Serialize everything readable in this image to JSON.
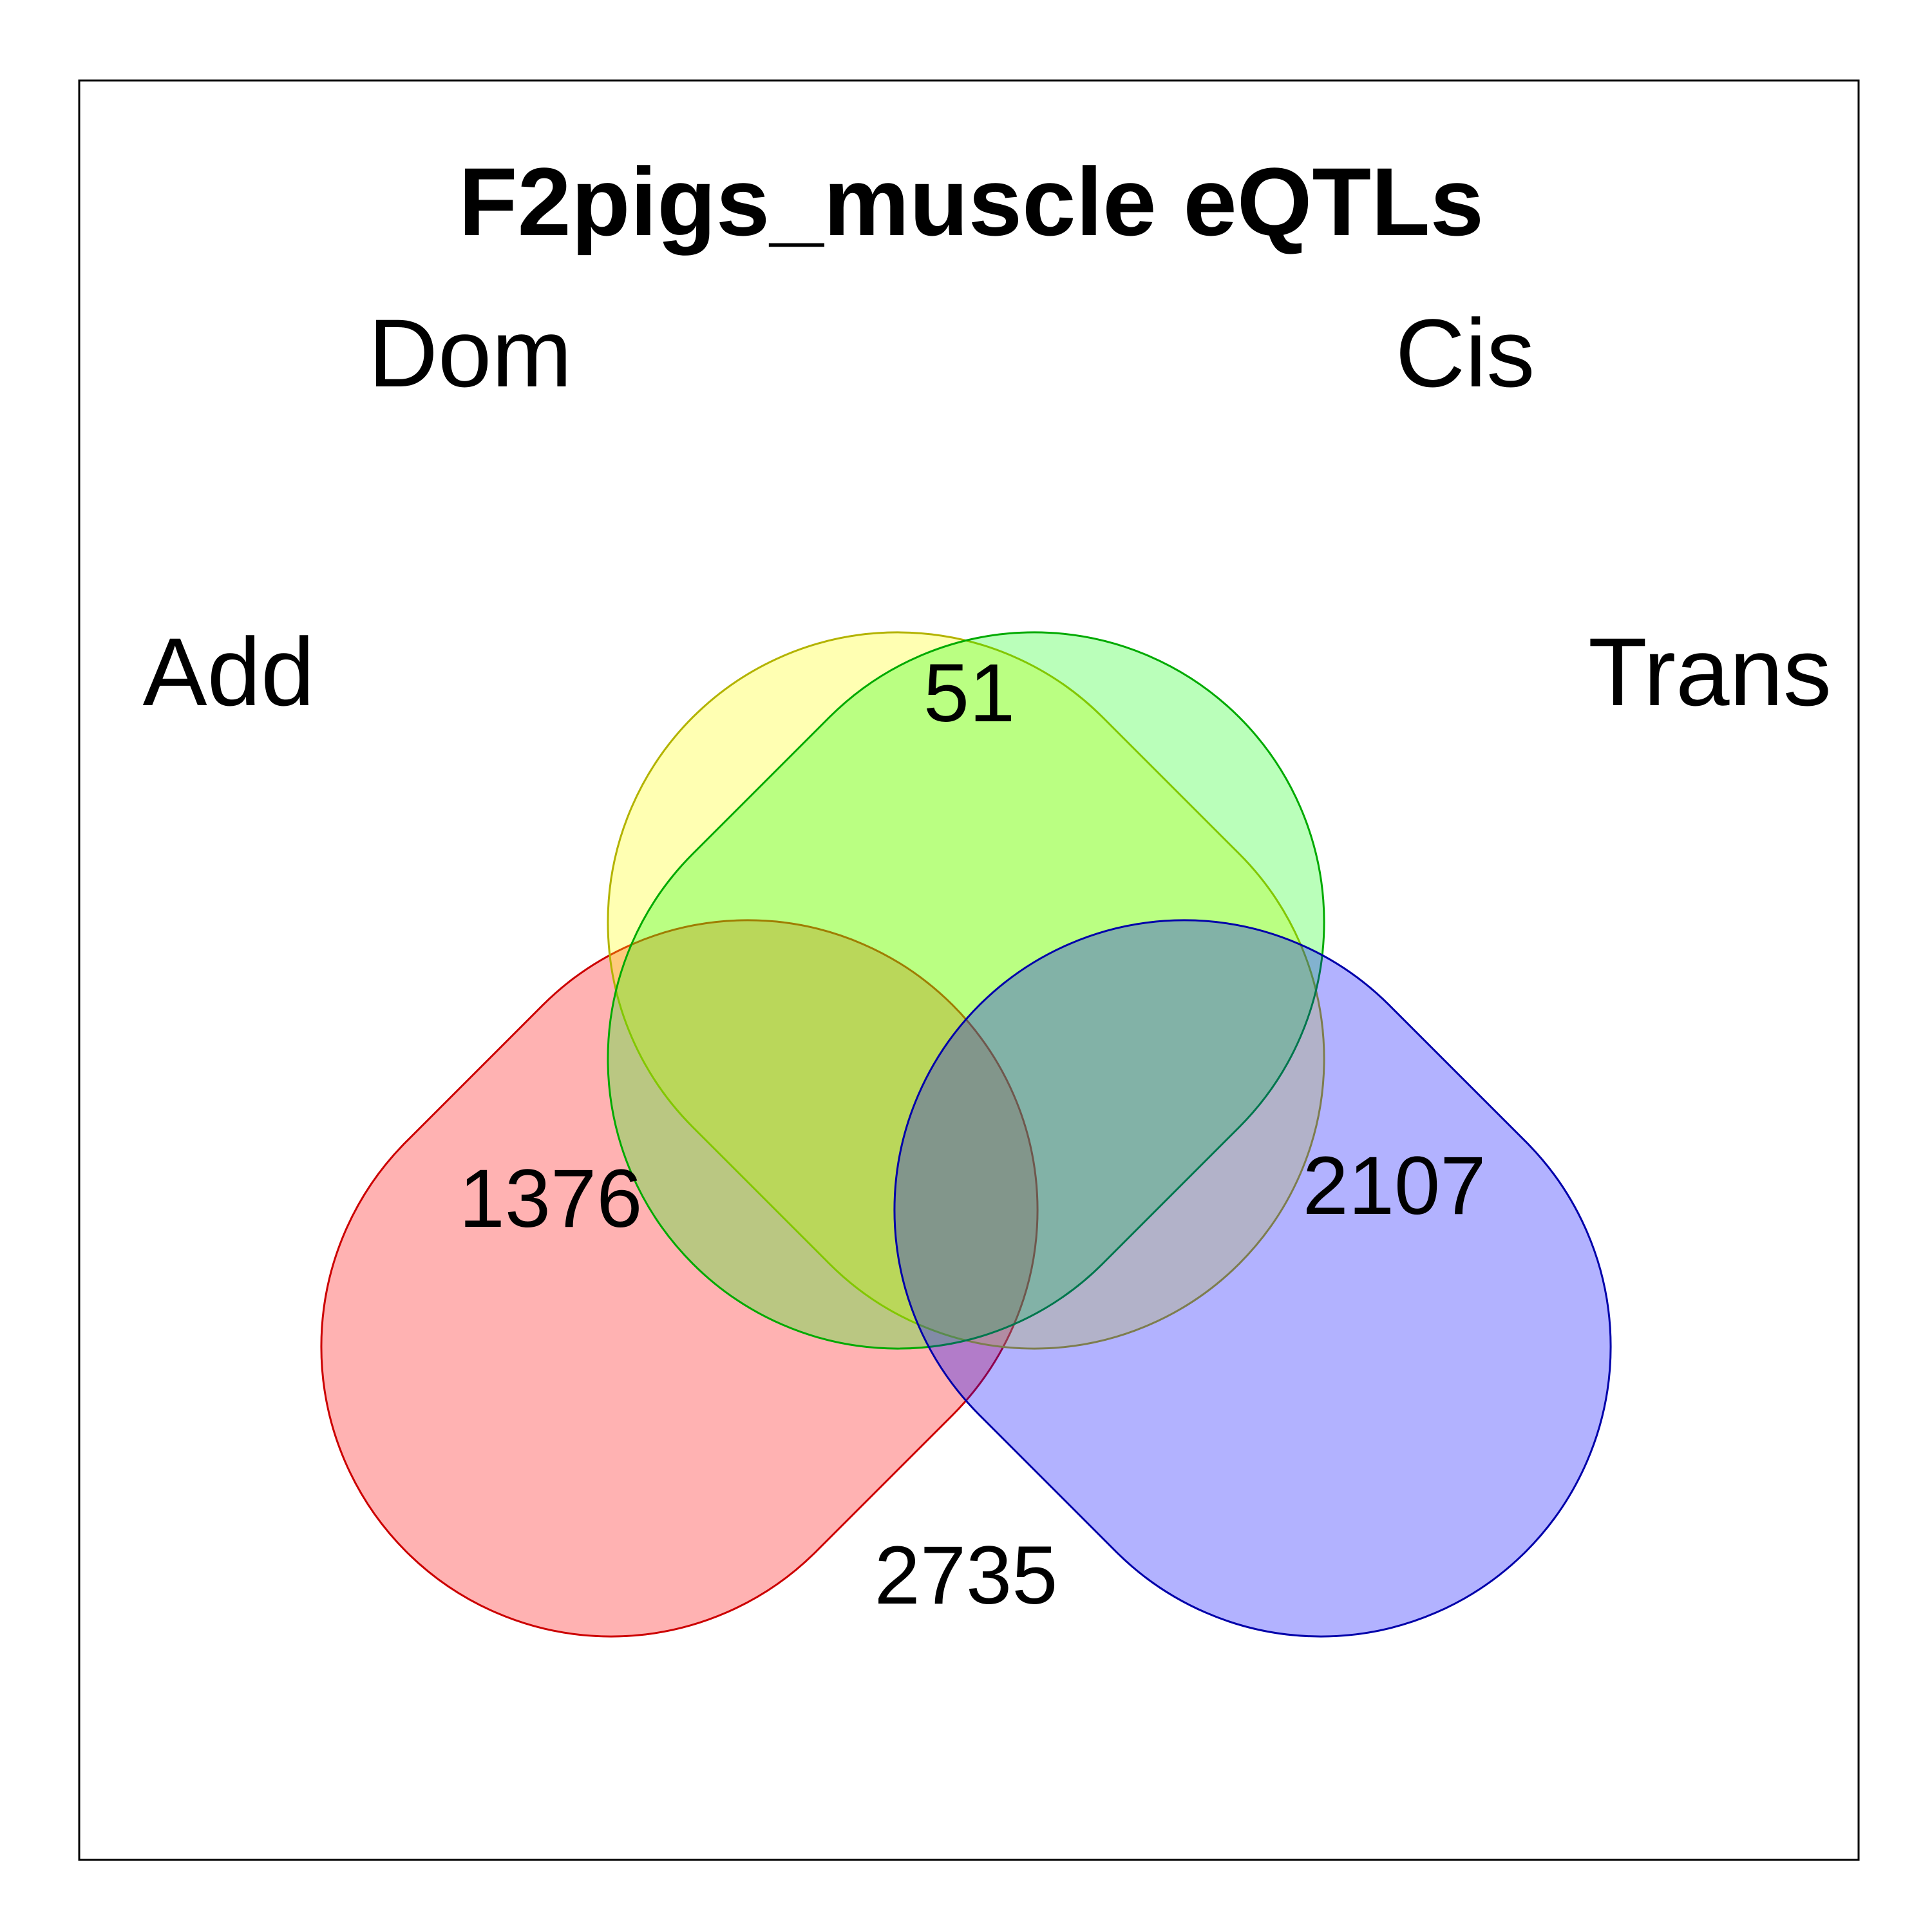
{
  "title": "F2pigs_muscle eQTLs",
  "sets": [
    {
      "key": "add",
      "label": "Add",
      "fill": "#ff0000",
      "stroke": "#cc0000"
    },
    {
      "key": "dom",
      "label": "Dom",
      "fill": "#ffff00",
      "stroke": "#b3b300"
    },
    {
      "key": "cis",
      "label": "Cis",
      "fill": "#00ff00",
      "stroke": "#00aa00"
    },
    {
      "key": "trans",
      "label": "Trans",
      "fill": "#0000ff",
      "stroke": "#0000aa"
    }
  ],
  "counts": {
    "dom_cis": "51",
    "add_cis": "1376",
    "dom_trans": "2107",
    "add_trans": "2735"
  }
}
